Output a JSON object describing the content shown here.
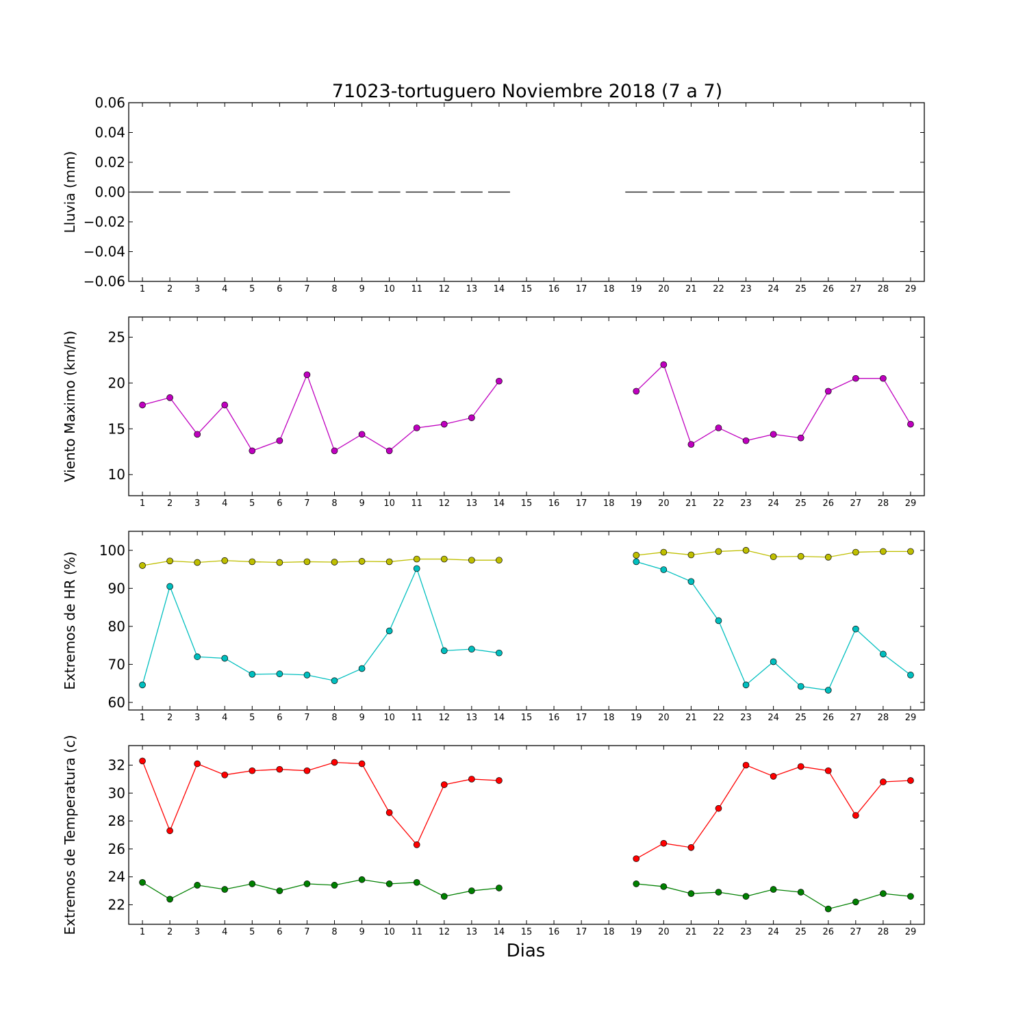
{
  "chart_data": {
    "title": "71023-tortuguero Noviembre 2018  (7 a 7)",
    "xlabel": "Dias",
    "x": [
      1,
      2,
      3,
      4,
      5,
      6,
      7,
      8,
      9,
      10,
      11,
      12,
      13,
      14,
      15,
      16,
      17,
      18,
      19,
      20,
      21,
      22,
      23,
      24,
      25,
      26,
      27,
      28,
      29
    ],
    "xlim": [
      0.5,
      29.5
    ],
    "panels": [
      {
        "type": "bar",
        "ylabel": "Lluvia (mm)",
        "ylim": [
          -0.06,
          0.06
        ],
        "yticks": [
          0.06,
          0.04,
          0.02,
          0.0,
          -0.02,
          -0.04,
          -0.06
        ],
        "ytick_labels": [
          "0.06",
          "0.04",
          "0.02",
          "0.00",
          "−0.02",
          "−0.04",
          "−0.06"
        ],
        "series": [
          {
            "color": "#000000",
            "values": [
              0,
              0,
              0,
              0,
              0,
              0,
              0,
              0,
              0,
              0,
              0,
              0,
              0,
              0,
              null,
              null,
              null,
              null,
              0,
              0,
              0,
              0,
              0,
              0,
              0,
              0,
              0,
              0,
              0
            ]
          }
        ]
      },
      {
        "type": "line",
        "ylabel": "Viento Maximo (km/h)",
        "ylim": [
          7.7,
          27.2
        ],
        "yticks": [
          10,
          15,
          20,
          25
        ],
        "ytick_labels": [
          "10",
          "15",
          "20",
          "25"
        ],
        "series": [
          {
            "color": "#bf00bf",
            "values": [
              17.6,
              18.4,
              14.4,
              17.6,
              12.6,
              13.7,
              20.9,
              12.6,
              14.4,
              12.6,
              15.1,
              15.5,
              16.2,
              20.2,
              null,
              null,
              null,
              null,
              19.1,
              22.0,
              13.3,
              15.1,
              13.7,
              14.4,
              14.0,
              19.1,
              20.5,
              20.5,
              15.5
            ]
          }
        ]
      },
      {
        "type": "line",
        "ylabel": "Extremos de HR (%)",
        "ylim": [
          58.0,
          105.0
        ],
        "yticks": [
          60,
          70,
          80,
          90,
          100
        ],
        "ytick_labels": [
          "60",
          "70",
          "80",
          "90",
          "100"
        ],
        "series": [
          {
            "color": "#bfbf00",
            "values": [
              96.0,
              97.2,
              96.8,
              97.3,
              97.0,
              96.8,
              97.0,
              96.9,
              97.1,
              97.0,
              97.7,
              97.7,
              97.4,
              97.4,
              null,
              null,
              null,
              null,
              98.7,
              99.5,
              98.8,
              99.7,
              100.0,
              98.3,
              98.4,
              98.2,
              99.5,
              99.7,
              99.7
            ]
          },
          {
            "color": "#00bfbf",
            "values": [
              64.6,
              90.5,
              72.0,
              71.6,
              67.4,
              67.5,
              67.2,
              65.7,
              68.9,
              78.8,
              95.2,
              73.6,
              74.0,
              73.0,
              null,
              null,
              null,
              null,
              97.0,
              94.9,
              91.8,
              81.5,
              64.6,
              70.7,
              64.2,
              63.2,
              79.3,
              72.7,
              67.2
            ]
          }
        ]
      },
      {
        "type": "line",
        "ylabel": "Extremos de Temperatura (c)",
        "ylim": [
          20.6,
          33.4
        ],
        "yticks": [
          22,
          24,
          26,
          28,
          30,
          32
        ],
        "ytick_labels": [
          "22",
          "24",
          "26",
          "28",
          "30",
          "32"
        ],
        "series": [
          {
            "color": "#ff0000",
            "values": [
              32.3,
              27.3,
              32.1,
              31.3,
              31.6,
              31.7,
              31.6,
              32.2,
              32.1,
              28.6,
              26.3,
              30.6,
              31.0,
              30.9,
              null,
              null,
              null,
              null,
              25.3,
              26.4,
              26.1,
              28.9,
              32.0,
              31.2,
              31.9,
              31.6,
              28.4,
              30.8,
              30.9
            ]
          },
          {
            "color": "#008000",
            "values": [
              23.6,
              22.4,
              23.4,
              23.1,
              23.5,
              23.0,
              23.5,
              23.4,
              23.8,
              23.5,
              23.6,
              22.6,
              23.0,
              23.2,
              null,
              null,
              null,
              null,
              23.5,
              23.3,
              22.8,
              22.9,
              22.6,
              23.1,
              22.9,
              21.7,
              22.2,
              22.8,
              22.6
            ]
          }
        ]
      }
    ]
  }
}
